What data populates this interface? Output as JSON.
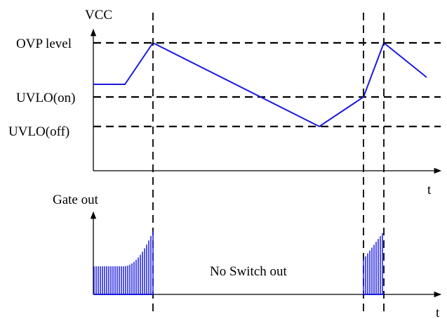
{
  "colors": {
    "trace": "#1a1adf",
    "axis": "#000000"
  },
  "top_plot": {
    "y_axis_label": "VCC",
    "x_axis_label": "t",
    "levels": {
      "ovp": "OVP level",
      "uvlo_on": "UVLO(on)",
      "uvlo_off": "UVLO(off)"
    }
  },
  "bottom_plot": {
    "y_axis_label": "Gate out",
    "x_axis_label": "t",
    "annotation": "No Switch out"
  }
}
